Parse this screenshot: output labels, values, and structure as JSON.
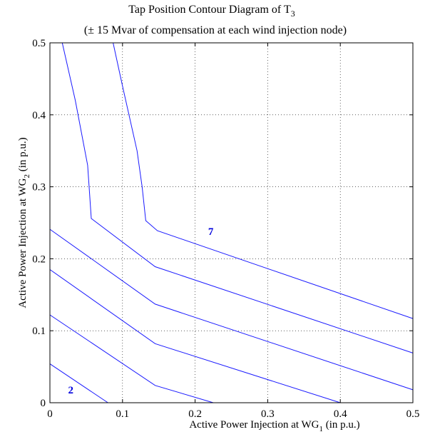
{
  "chart_data": {
    "type": "line",
    "title": "Tap Position Contour Diagram of T",
    "title_subscript": "3",
    "subtitle": "(± 15 Mvar of compensation at each wind injection  node)",
    "xlabel": "Active Power Injection at WG",
    "xlabel_subscript": "1",
    "xlabel_suffix": " (in p.u.)",
    "ylabel": "Active Power Injection at WG",
    "ylabel_subscript": "2",
    "ylabel_suffix": " (in p.u.)",
    "xlim": [
      0,
      0.5
    ],
    "ylim": [
      0,
      0.5
    ],
    "xticks": [
      "0",
      "0.1",
      "0.2",
      "0.3",
      "0.4",
      "0.5"
    ],
    "yticks": [
      "0",
      "0.1",
      "0.2",
      "0.3",
      "0.4",
      "0.5"
    ],
    "grid": true,
    "line_color": "#1a1aff",
    "label_color": "#0000dd",
    "series": [
      {
        "x": [
          0,
          0.08
        ],
        "y": [
          0.054,
          0
        ]
      },
      {
        "x": [
          0,
          0.145,
          0.225
        ],
        "y": [
          0.122,
          0.024,
          0
        ]
      },
      {
        "x": [
          0,
          0.145,
          0.4
        ],
        "y": [
          0.185,
          0.082,
          0
        ]
      },
      {
        "x": [
          0,
          0.145,
          0.5
        ],
        "y": [
          0.241,
          0.137,
          0.018
        ]
      },
      {
        "x": [
          0.017,
          0.035,
          0.052,
          0.057,
          0.145,
          0.5
        ],
        "y": [
          0.5,
          0.42,
          0.33,
          0.256,
          0.189,
          0.069
        ]
      },
      {
        "x": [
          0.087,
          0.1,
          0.12,
          0.127,
          0.132,
          0.148,
          0.5
        ],
        "y": [
          0.5,
          0.44,
          0.35,
          0.3,
          0.253,
          0.239,
          0.117
        ]
      }
    ],
    "contour_labels": [
      {
        "text": "2",
        "x": 0.025,
        "y": 0.018
      },
      {
        "text": "7",
        "x": 0.218,
        "y": 0.238
      }
    ]
  }
}
